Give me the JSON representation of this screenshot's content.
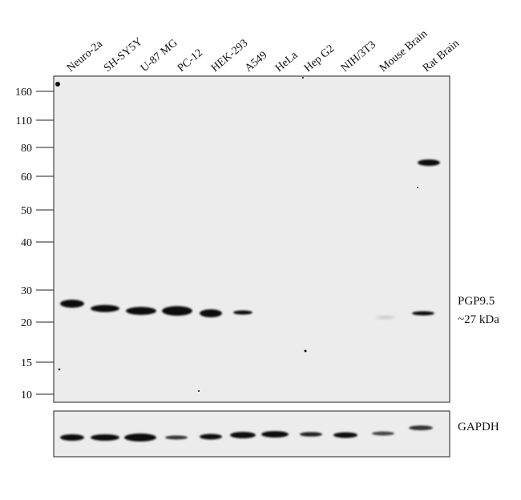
{
  "lanes": [
    "Neuro-2a",
    "SH-SY5Y",
    "U-87 MG",
    "PC-12",
    "HEK-293",
    "A549",
    "HeLa",
    "Hep G2",
    "NIH/3T3",
    "Mouse Brain",
    "Rat Brain"
  ],
  "markers": [
    "160",
    "110",
    "80",
    "60",
    "50",
    "40",
    "30",
    "20",
    "15",
    "10"
  ],
  "target": {
    "name": "PGP9.5",
    "size": "~27 kDa"
  },
  "loading_control": {
    "name": "GAPDH"
  },
  "colors": {
    "membrane": "#ececec",
    "band": "#111111",
    "border": "#222222"
  }
}
